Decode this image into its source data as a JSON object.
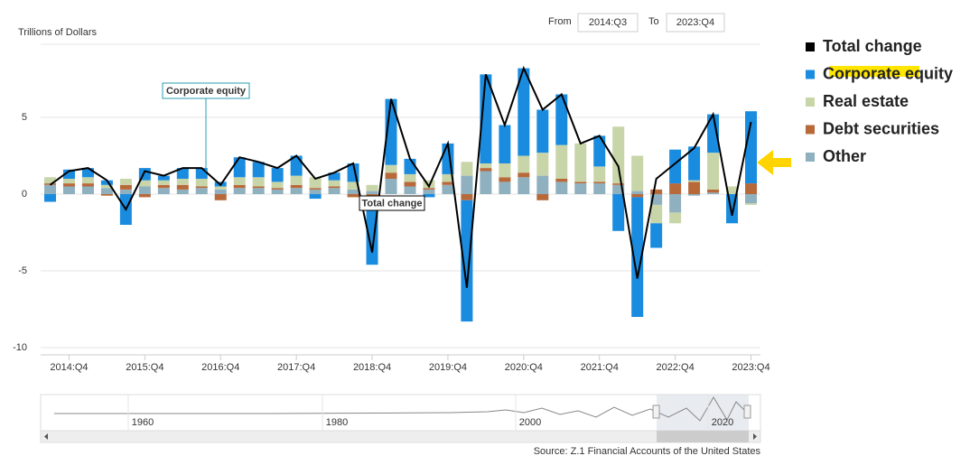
{
  "from_label": "From",
  "from_value": "2014:Q3",
  "to_label": "To",
  "to_value": "2023:Q4",
  "navigator_labels": [
    "1960",
    "1980",
    "2000",
    "2020"
  ],
  "source": "Source: Z.1 Financial Accounts of the United States",
  "chart_data": {
    "type": "bar",
    "stacked": true,
    "y_label": "Trillions of Dollars",
    "categories": [
      null,
      "2014:Q4",
      null,
      null,
      null,
      "2015:Q4",
      null,
      null,
      null,
      "2016:Q4",
      null,
      null,
      null,
      "2017:Q4",
      null,
      null,
      null,
      "2018:Q4",
      null,
      null,
      null,
      "2019:Q4",
      null,
      null,
      null,
      "2020:Q4",
      null,
      null,
      null,
      "2021:Q4",
      null,
      null,
      null,
      "2022:Q4",
      null,
      null,
      null,
      "2023:Q4"
    ],
    "series": [
      {
        "name": "Total change",
        "type": "line",
        "color": "#000000",
        "values": [
          0.6,
          1.5,
          1.7,
          0.9,
          -1.0,
          1.5,
          1.2,
          1.7,
          1.7,
          0.6,
          2.4,
          2.1,
          1.7,
          2.5,
          1.0,
          1.4,
          2.0,
          -3.8,
          6.2,
          2.3,
          0.5,
          3.3,
          -6.1,
          7.8,
          4.5,
          8.2,
          5.5,
          6.5,
          3.3,
          3.8,
          1.8,
          -5.5,
          1.0,
          2.0,
          3.0,
          5.2,
          -1.4,
          4.7
        ]
      },
      {
        "name": "Corporate equity",
        "color": "#1a8ce0",
        "values": [
          -0.5,
          0.6,
          0.6,
          0.3,
          -2.0,
          0.8,
          0.3,
          0.7,
          0.7,
          0.3,
          1.3,
          1.0,
          0.9,
          1.3,
          -0.3,
          0.5,
          1.2,
          -4.5,
          4.3,
          1.0,
          -0.2,
          2.0,
          -7.9,
          5.8,
          2.5,
          5.7,
          2.8,
          3.3,
          0.0,
          2.0,
          -2.4,
          -7.8,
          -1.6,
          2.2,
          2.2,
          2.5,
          -1.9,
          4.7
        ]
      },
      {
        "name": "Real estate",
        "color": "#c8d5a8",
        "values": [
          0.4,
          0.3,
          0.4,
          0.2,
          0.4,
          0.4,
          0.3,
          0.4,
          0.5,
          0.2,
          0.5,
          0.6,
          0.4,
          0.6,
          0.7,
          0.4,
          0.5,
          0.4,
          0.5,
          0.5,
          0.5,
          0.5,
          0.9,
          0.3,
          0.9,
          1.1,
          1.5,
          2.2,
          2.5,
          1.0,
          3.7,
          2.3,
          -1.2,
          -0.7,
          0.1,
          2.4,
          0.5,
          -0.1
        ]
      },
      {
        "name": "Debt securities",
        "color": "#b8693a",
        "values": [
          0.1,
          0.2,
          0.2,
          -0.1,
          0.3,
          -0.2,
          0.2,
          0.3,
          0.1,
          -0.4,
          0.2,
          0.1,
          0.1,
          0.2,
          0.1,
          0.1,
          -0.2,
          -0.1,
          0.4,
          0.3,
          0.1,
          0.2,
          -0.4,
          0.2,
          0.3,
          0.3,
          -0.4,
          0.2,
          0.1,
          0.1,
          0.1,
          -0.2,
          0.3,
          0.7,
          0.8,
          0.2,
          0.0,
          0.7
        ]
      },
      {
        "name": "Other",
        "color": "#8fb0bf",
        "values": [
          0.6,
          0.5,
          0.5,
          0.4,
          0.3,
          0.5,
          0.4,
          0.3,
          0.4,
          0.3,
          0.4,
          0.4,
          0.3,
          0.4,
          0.3,
          0.4,
          0.3,
          0.2,
          1.0,
          0.5,
          0.3,
          0.6,
          1.2,
          1.5,
          0.8,
          1.1,
          1.2,
          0.8,
          0.7,
          0.7,
          0.6,
          0.2,
          -0.7,
          -1.2,
          -0.1,
          0.1,
          0.0,
          -0.6
        ]
      }
    ],
    "ylim": [
      -10,
      10
    ],
    "yticks": [
      -10,
      -5,
      0,
      5
    ],
    "grid": true,
    "annotations": [
      {
        "text": "Corporate equity"
      },
      {
        "text": "Total change"
      }
    ]
  }
}
